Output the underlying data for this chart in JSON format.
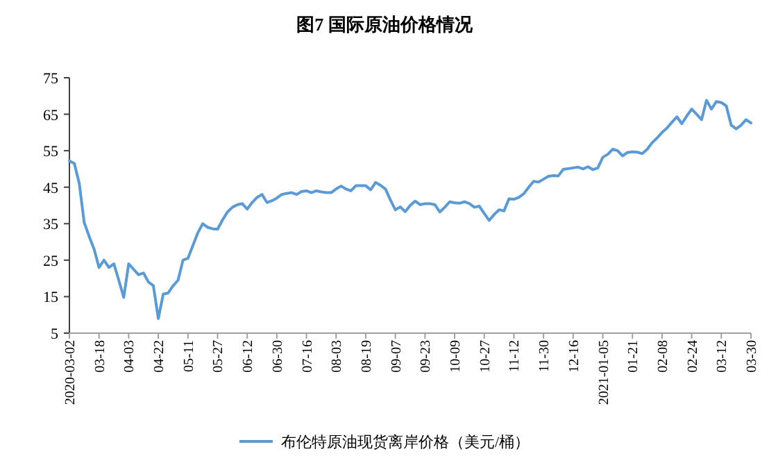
{
  "chart_data": {
    "type": "line",
    "title": "图7  国际原油价格情况",
    "categories": [
      "2020-03-02",
      null,
      null,
      null,
      null,
      null,
      "03-18",
      null,
      null,
      null,
      null,
      null,
      "04-03",
      null,
      null,
      null,
      null,
      null,
      "04-22",
      null,
      null,
      null,
      null,
      null,
      "05-11",
      null,
      null,
      null,
      null,
      null,
      "05-27",
      null,
      null,
      null,
      null,
      null,
      "06-12",
      null,
      null,
      null,
      null,
      null,
      "06-30",
      null,
      null,
      null,
      null,
      null,
      "07-16",
      null,
      null,
      null,
      null,
      null,
      "08-03",
      null,
      null,
      null,
      null,
      null,
      "08-19",
      null,
      null,
      null,
      null,
      null,
      "09-07",
      null,
      null,
      null,
      null,
      null,
      "09-23",
      null,
      null,
      null,
      null,
      null,
      "10-09",
      null,
      null,
      null,
      null,
      null,
      "10-27",
      null,
      null,
      null,
      null,
      null,
      "11-12",
      null,
      null,
      null,
      null,
      null,
      "11-30",
      null,
      null,
      null,
      null,
      null,
      "12-16",
      null,
      null,
      null,
      null,
      null,
      "2021-01-05",
      null,
      null,
      null,
      null,
      null,
      "01-21",
      null,
      null,
      null,
      null,
      null,
      "02-08",
      null,
      null,
      null,
      null,
      null,
      "02-24",
      null,
      null,
      null,
      null,
      null,
      "03-12",
      null,
      null,
      null,
      null,
      null,
      "03-30"
    ],
    "series": [
      {
        "name": "布伦特原油现货离岸价格（美元/桶）",
        "color": "#5b9bd5",
        "values": [
          52.2,
          51.5,
          46,
          35.3,
          31.5,
          28,
          23,
          25,
          23,
          24,
          19.5,
          14.8,
          24,
          22.5,
          21,
          21.5,
          19,
          18,
          9,
          15.7,
          16,
          18,
          19.5,
          25,
          25.5,
          29,
          32.5,
          35,
          34,
          33.6,
          33.5,
          36,
          38.2,
          39.5,
          40.2,
          40.5,
          39,
          40.8,
          42.2,
          43,
          40.8,
          41.3,
          42,
          43,
          43.3,
          43.5,
          43,
          43.8,
          44,
          43.5,
          44,
          43.7,
          43.5,
          43.5,
          44.5,
          45.3,
          44.5,
          44,
          45.4,
          45.4,
          45.4,
          44.3,
          46.3,
          45.5,
          44.5,
          41.5,
          38.8,
          39.6,
          38.3,
          40,
          41.2,
          40.2,
          40.5,
          40.5,
          40.2,
          38.2,
          39.5,
          41,
          40.7,
          40.6,
          41,
          40.5,
          39.5,
          39.8,
          37.8,
          35.9,
          37.5,
          38.8,
          38.5,
          41.8,
          41.7,
          42.2,
          43.2,
          45,
          46.6,
          46.4,
          47.2,
          48,
          48.2,
          48.1,
          49.9,
          50.1,
          50.3,
          50.5,
          50,
          50.6,
          49.8,
          50.3,
          53.2,
          54,
          55.4,
          55,
          53.6,
          54.5,
          54.7,
          54.6,
          54.2,
          55.4,
          57.2,
          58.5,
          60,
          61.2,
          62.8,
          64.3,
          62.4,
          64.5,
          66.4,
          65,
          63.5,
          68.8,
          66.4,
          68.5,
          68.2,
          67.3,
          62,
          61,
          62,
          63.5,
          62.6
        ]
      }
    ],
    "ylim": [
      5,
      75
    ],
    "yticks": [
      5,
      15,
      25,
      35,
      45,
      55,
      65,
      75
    ],
    "legend": "bottom"
  }
}
